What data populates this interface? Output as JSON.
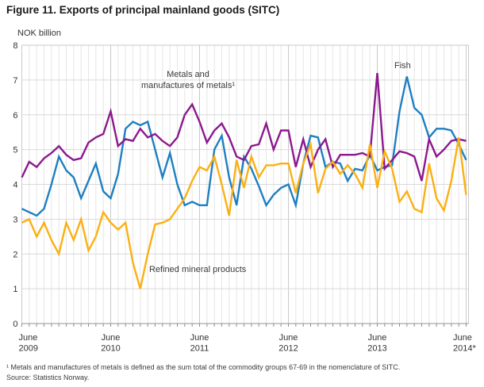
{
  "header": {
    "title": "Figure 11. Exports of principal mainland goods (SITC)"
  },
  "chart_data": {
    "type": "line",
    "title": "Figure 11. Exports of principal mainland goods (SITC)",
    "unit_label": "NOK billion",
    "ylabel": "NOK billion",
    "xlabel": "",
    "ylim": [
      0,
      8
    ],
    "yticks": [
      0,
      1,
      2,
      3,
      4,
      5,
      6,
      7,
      8
    ],
    "grid": true,
    "legend_position": "inline-annotations",
    "x_frequency": "monthly",
    "xtick_positions": [
      0,
      12,
      24,
      36,
      48,
      60
    ],
    "xtick_labels": [
      [
        "June",
        "2009"
      ],
      [
        "June",
        "2010"
      ],
      [
        "June",
        "2011"
      ],
      [
        "June",
        "2012"
      ],
      [
        "June",
        "2013"
      ],
      [
        "June",
        "2014*"
      ]
    ],
    "months": [
      "Jun 2009",
      "Jul 2009",
      "Aug 2009",
      "Sep 2009",
      "Oct 2009",
      "Nov 2009",
      "Dec 2009",
      "Jan 2010",
      "Feb 2010",
      "Mar 2010",
      "Apr 2010",
      "May 2010",
      "Jun 2010",
      "Jul 2010",
      "Aug 2010",
      "Sep 2010",
      "Oct 2010",
      "Nov 2010",
      "Dec 2010",
      "Jan 2011",
      "Feb 2011",
      "Mar 2011",
      "Apr 2011",
      "May 2011",
      "Jun 2011",
      "Jul 2011",
      "Aug 2011",
      "Sep 2011",
      "Oct 2011",
      "Nov 2011",
      "Dec 2011",
      "Jan 2012",
      "Feb 2012",
      "Mar 2012",
      "Apr 2012",
      "May 2012",
      "Jun 2012",
      "Jul 2012",
      "Aug 2012",
      "Sep 2012",
      "Oct 2012",
      "Nov 2012",
      "Dec 2012",
      "Jan 2013",
      "Feb 2013",
      "Mar 2013",
      "Apr 2013",
      "May 2013",
      "Jun 2013",
      "Jul 2013",
      "Aug 2013",
      "Sep 2013",
      "Oct 2013",
      "Nov 2013",
      "Dec 2013",
      "Jan 2014",
      "Feb 2014",
      "Mar 2014",
      "Apr 2014",
      "May 2014",
      "Jun 2014"
    ],
    "series": [
      {
        "key": "fish",
        "name": "Fish",
        "color": "#1e7fc3",
        "values": [
          3.3,
          3.2,
          3.1,
          3.3,
          4.0,
          4.8,
          4.4,
          4.2,
          3.6,
          4.1,
          4.6,
          3.8,
          3.6,
          4.3,
          5.6,
          5.8,
          5.7,
          5.8,
          5.0,
          4.2,
          4.9,
          4.0,
          3.4,
          3.5,
          3.4,
          3.4,
          5.0,
          5.4,
          4.2,
          3.4,
          4.8,
          4.45,
          3.95,
          3.4,
          3.7,
          3.9,
          4.0,
          3.4,
          4.6,
          5.4,
          5.35,
          4.5,
          4.65,
          4.6,
          4.1,
          4.45,
          4.4,
          4.85,
          4.4,
          4.5,
          4.55,
          6.1,
          7.1,
          6.2,
          6.0,
          5.35,
          5.6,
          5.6,
          5.55,
          5.15,
          4.7
        ]
      },
      {
        "key": "metals",
        "name": "Metals and manufactures of metals¹",
        "color": "#8c188e",
        "values": [
          4.2,
          4.65,
          4.5,
          4.75,
          4.9,
          5.1,
          4.85,
          4.7,
          4.75,
          5.2,
          5.35,
          5.45,
          6.1,
          5.1,
          5.3,
          5.25,
          5.6,
          5.35,
          5.45,
          5.25,
          5.1,
          5.35,
          6.0,
          6.3,
          5.8,
          5.2,
          5.55,
          5.75,
          5.35,
          4.8,
          4.7,
          5.1,
          5.15,
          5.75,
          5.0,
          5.55,
          5.55,
          4.5,
          5.3,
          4.5,
          5.0,
          5.3,
          4.5,
          4.85,
          4.85,
          4.85,
          4.9,
          4.8,
          7.2,
          4.45,
          4.7,
          4.95,
          4.9,
          4.8,
          4.1,
          5.3,
          4.8,
          5.0,
          5.25,
          5.3,
          5.25
        ]
      },
      {
        "key": "refined",
        "name": "Refined mineral products",
        "color": "#fbb012",
        "values": [
          2.9,
          3.0,
          2.5,
          2.9,
          2.4,
          2.0,
          2.9,
          2.4,
          3.0,
          2.1,
          2.5,
          3.2,
          2.9,
          2.7,
          2.9,
          1.75,
          1.0,
          2.0,
          2.85,
          2.9,
          3.0,
          3.3,
          3.6,
          4.1,
          4.5,
          4.4,
          4.8,
          4.0,
          3.1,
          4.7,
          3.9,
          4.8,
          4.2,
          4.55,
          4.55,
          4.6,
          4.6,
          3.75,
          4.6,
          5.15,
          3.75,
          4.45,
          4.65,
          4.3,
          4.55,
          4.3,
          3.9,
          5.15,
          3.9,
          4.95,
          4.45,
          3.5,
          3.8,
          3.3,
          3.2,
          4.6,
          3.6,
          3.25,
          4.1,
          5.35,
          3.7
        ]
      }
    ],
    "annotations": {
      "fish": {
        "text": "Fish"
      },
      "metals": {
        "line1": "Metals and",
        "line2": "manufactures of metals¹"
      },
      "refined": {
        "text": "Refined mineral products"
      }
    },
    "colors": {
      "fish": "#1e7fc3",
      "metals": "#8c188e",
      "refined": "#fbb012",
      "gridline": "#e6e6e6",
      "gridline_june": "#c9c9c9",
      "gridline_horizontal": "#d9d9d9",
      "axis": "#909090",
      "text": "#333333"
    }
  },
  "footnotes": {
    "definition": "¹ Metals and manufactures of metals is defined as the sum total of the commodity groups 67-69 in the nomenclature of SITC.",
    "source": "Source: Statistics Norway."
  }
}
